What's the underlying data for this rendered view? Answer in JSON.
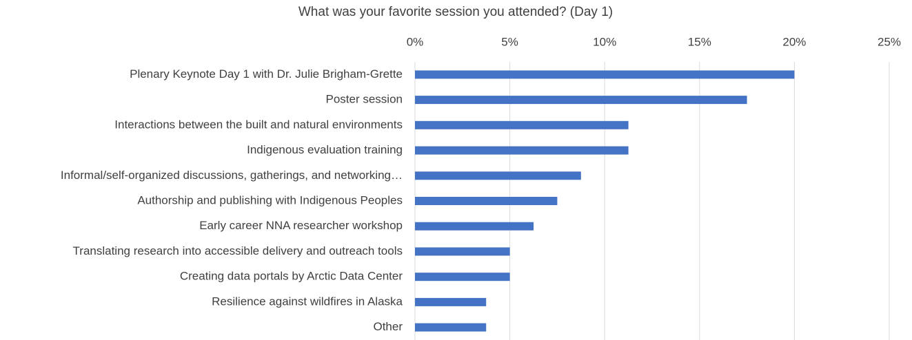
{
  "chart_data": {
    "type": "hbar",
    "title": "What was your favorite session you attended? (Day 1)",
    "categories": [
      "Plenary Keynote Day 1 with Dr. Julie Brigham-Grette",
      "Poster session",
      "Interactions between the built and natural environments",
      "Indigenous evaluation training",
      "Informal/self-organized discussions, gatherings, and networking…",
      "Authorship and publishing with Indigenous Peoples",
      "Early career NNA researcher workshop",
      "Translating research into accessible delivery and outreach tools",
      "Creating data portals by Arctic Data Center",
      "Resilience against wildfires in Alaska",
      "Other"
    ],
    "values": [
      20,
      17.5,
      11.25,
      11.25,
      8.75,
      7.5,
      6.25,
      5,
      5,
      3.75,
      3.75
    ],
    "color": "#4472c4",
    "xlim": [
      0,
      25
    ],
    "xticks": [
      {
        "value": 0,
        "label": "0%"
      },
      {
        "value": 5,
        "label": "5%"
      },
      {
        "value": 10,
        "label": "10%"
      },
      {
        "value": 15,
        "label": "15%"
      },
      {
        "value": 20,
        "label": "20%"
      },
      {
        "value": 25,
        "label": "25%"
      }
    ],
    "grid": true
  }
}
